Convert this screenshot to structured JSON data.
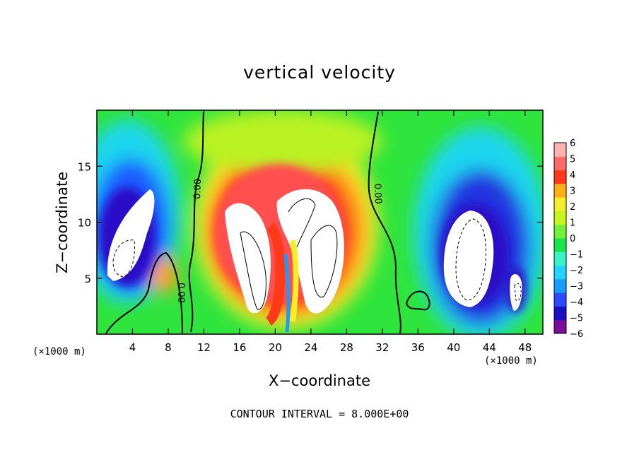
{
  "chart_data": {
    "type": "heatmap",
    "title": "vertical velocity",
    "xlabel": "X−coordinate",
    "ylabel": "Z−coordinate",
    "x_unit_left": "(×1000 m)",
    "x_unit_right": "(×1000 m)",
    "footer": "CONTOUR INTERVAL = 8.000E+00",
    "xlim": [
      0,
      50
    ],
    "ylim": [
      0,
      20
    ],
    "x_ticks": [
      4,
      8,
      12,
      16,
      20,
      24,
      28,
      32,
      36,
      40,
      44,
      48
    ],
    "y_ticks": [
      5,
      10,
      15
    ],
    "colorbar": {
      "ticks": [
        "6",
        "5",
        "4",
        "3",
        "2",
        "1",
        "0",
        "−1",
        "−2",
        "−3",
        "−4",
        "−5",
        "−6"
      ],
      "range": [
        -6,
        6
      ],
      "colors": [
        "#7b0c9a",
        "#1a0fc4",
        "#2c4bff",
        "#1a9cff",
        "#22d7ff",
        "#3cf0c8",
        "#19e64b",
        "#74f03a",
        "#c9f51f",
        "#f3f02b",
        "#ffb019",
        "#ff3a1a",
        "#ff6a6a",
        "#ffb3b3"
      ]
    },
    "contour_labels": [
      "0.00",
      "0.00",
      "0.00"
    ],
    "features": [
      {
        "kind": "updraft_core",
        "x": 19,
        "z": 8,
        "value": ">6"
      },
      {
        "kind": "updraft_core",
        "x": 24,
        "z": 9,
        "value": ">6"
      },
      {
        "kind": "downdraft_core",
        "x": 4.5,
        "z": 8,
        "value": "<-6"
      },
      {
        "kind": "downdraft_core",
        "x": 41.5,
        "z": 7.5,
        "value": "<-6"
      },
      {
        "kind": "downdraft_core",
        "x": 46.5,
        "z": 4,
        "value": "<-6"
      }
    ]
  }
}
